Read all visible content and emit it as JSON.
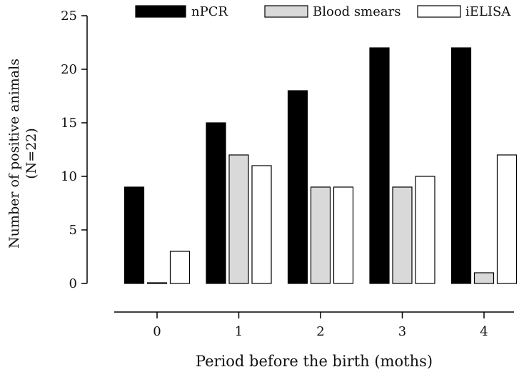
{
  "chart_data": {
    "type": "bar",
    "title": "",
    "xlabel": "Period before the birth (moths)",
    "ylabel": "Number of positive animals",
    "ylabel_sub": "(N=22)",
    "categories": [
      "0",
      "1",
      "2",
      "3",
      "4"
    ],
    "ylim": [
      0,
      25
    ],
    "yticks": [
      0,
      5,
      10,
      15,
      20,
      25
    ],
    "grid": false,
    "legend_position": "top",
    "series": [
      {
        "name": "nPCR",
        "color": "#000000",
        "values": [
          9,
          15,
          18,
          22,
          22
        ]
      },
      {
        "name": "Blood smears",
        "color": "#d9d9d9",
        "values": [
          0,
          12,
          9,
          9,
          1
        ]
      },
      {
        "name": "iELISA",
        "color": "#ffffff",
        "values": [
          3,
          11,
          9,
          10,
          12
        ]
      }
    ]
  }
}
